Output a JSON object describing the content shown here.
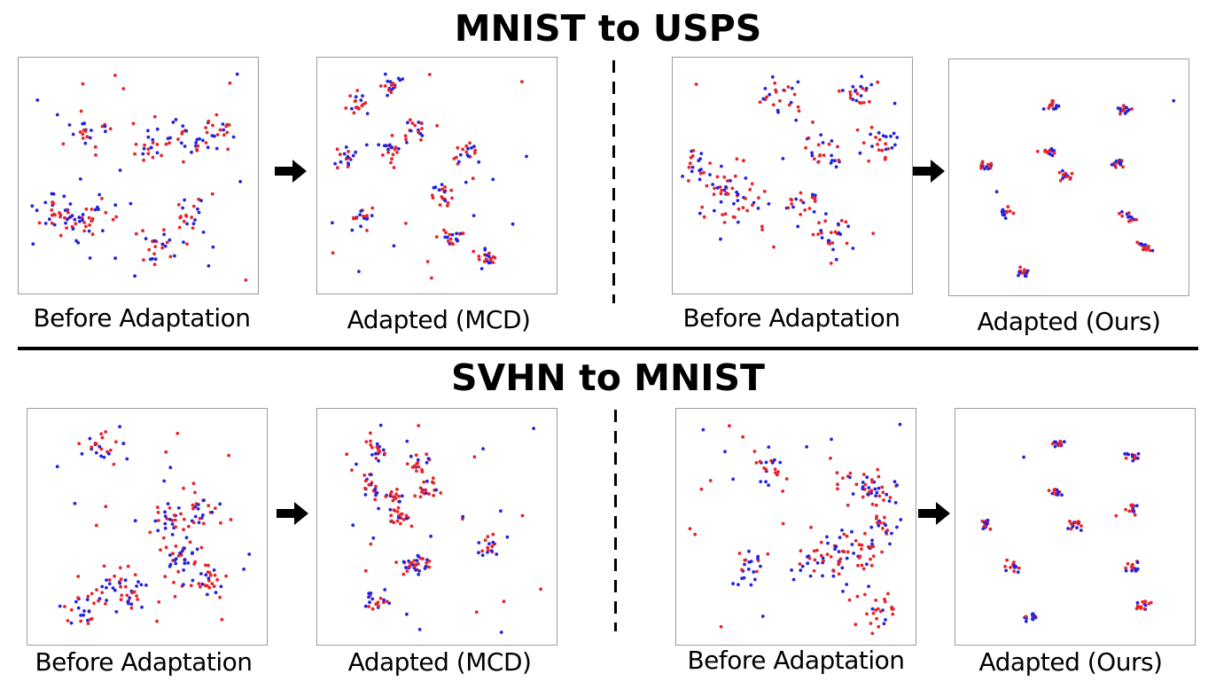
{
  "titles": {
    "top": "MNIST to USPS",
    "bottom": "SVHN to MNIST"
  },
  "colors": {
    "source": "#e8242a",
    "target": "#2323e0",
    "border": "#9a9a9a"
  },
  "icons": {
    "arrow": "right-arrow-icon"
  },
  "chart_data": [
    {
      "type": "scatter",
      "caption": "Before Adaptation",
      "layout": "diffuse",
      "seed": 11
    },
    {
      "type": "scatter",
      "caption": "Adapted (MCD)",
      "layout": "partial",
      "seed": 23
    },
    {
      "type": "scatter",
      "caption": "Before Adaptation",
      "layout": "diffuse",
      "seed": 37
    },
    {
      "type": "scatter",
      "caption": "Adapted (Ours)",
      "layout": "clustered",
      "seed": 41
    },
    {
      "type": "scatter",
      "caption": "Before Adaptation",
      "layout": "diffuse",
      "seed": 53
    },
    {
      "type": "scatter",
      "caption": "Adapted (MCD)",
      "layout": "partial",
      "seed": 67
    },
    {
      "type": "scatter",
      "caption": "Before Adaptation",
      "layout": "diffuse",
      "seed": 71
    },
    {
      "type": "scatter",
      "caption": "Adapted (Ours)",
      "layout": "clustered",
      "seed": 89
    }
  ]
}
